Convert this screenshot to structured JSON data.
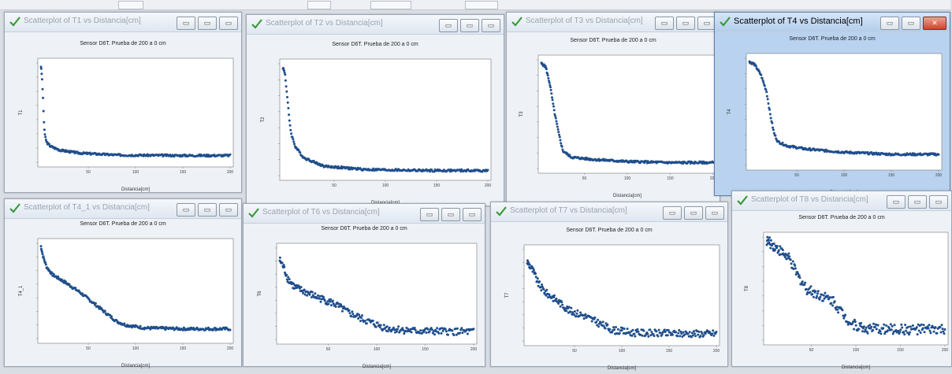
{
  "app": {
    "icon": "scatterplot-icon",
    "window_buttons": {
      "minimize": "▭",
      "maximize": "▭",
      "restore": "▭",
      "close": "✕"
    }
  },
  "colors": {
    "points": "#1f4e8c",
    "plot_bg": "#ffffff",
    "window_bg": "#eef1f6",
    "active_title": "#b9d2ef"
  },
  "windows": [
    {
      "title": "Scatterplot of T1 vs Distancia[cm]",
      "active": false
    },
    {
      "title": "Scatterplot of T2 vs Distancia[cm]",
      "active": false
    },
    {
      "title": "Scatterplot of T3 vs Distancia[cm]",
      "active": false
    },
    {
      "title": "Scatterplot of T4 vs Distancia[cm]",
      "active": true
    },
    {
      "title": "Scatterplot of T4_1 vs Distancia[cm]",
      "active": false
    },
    {
      "title": "Scatterplot of T6 vs Distancia[cm]",
      "active": false
    },
    {
      "title": "Scatterplot of T7 vs Distancia[cm]",
      "active": false
    },
    {
      "title": "Scatterplot of T8 vs Distancia[cm]",
      "active": false
    }
  ],
  "chart_data": [
    {
      "type": "scatter",
      "title": "Sensor D6T. Prueba de 200 a 0 cm",
      "xlabel": "Distancia[cm]",
      "ylabel": "T1",
      "xlim": [
        0,
        200
      ],
      "xticks": [
        "50",
        "100",
        "150",
        "200"
      ],
      "yticks": [
        "",
        "",
        "",
        "",
        "",
        "",
        "",
        ""
      ],
      "profile": [
        [
          0,
          100
        ],
        [
          1,
          90
        ],
        [
          2,
          70
        ],
        [
          3,
          45
        ],
        [
          4,
          30
        ],
        [
          6,
          22
        ],
        [
          10,
          18
        ],
        [
          20,
          14
        ],
        [
          40,
          11
        ],
        [
          80,
          9
        ],
        [
          140,
          8.5
        ],
        [
          200,
          8.5
        ]
      ],
      "noise": 1
    },
    {
      "type": "scatter",
      "title": "Sensor D6T. Prueba de 200 a 0 cm",
      "xlabel": "Distancia[cm]",
      "ylabel": "T2",
      "xlim": [
        0,
        200
      ],
      "xticks": [
        "50",
        "100",
        "150",
        "200"
      ],
      "yticks": [
        "",
        "",
        "",
        "",
        "",
        "",
        "",
        ""
      ],
      "profile": [
        [
          0,
          100
        ],
        [
          2,
          95
        ],
        [
          4,
          75
        ],
        [
          6,
          55
        ],
        [
          8,
          40
        ],
        [
          12,
          28
        ],
        [
          20,
          18
        ],
        [
          40,
          10
        ],
        [
          80,
          7
        ],
        [
          140,
          6
        ],
        [
          200,
          6
        ]
      ],
      "noise": 1
    },
    {
      "type": "scatter",
      "title": "Sensor D6T. Prueba de 200 a 0 cm",
      "xlabel": "Distancia[cm]",
      "ylabel": "T3",
      "xlim": [
        0,
        200
      ],
      "xticks": [
        "50",
        "100",
        "150",
        "200"
      ],
      "yticks": [
        "",
        "",
        "",
        "",
        "",
        "",
        "",
        ""
      ],
      "profile": [
        [
          0,
          100
        ],
        [
          5,
          97
        ],
        [
          10,
          80
        ],
        [
          15,
          55
        ],
        [
          20,
          35
        ],
        [
          25,
          18
        ],
        [
          35,
          12
        ],
        [
          60,
          10
        ],
        [
          100,
          8
        ],
        [
          150,
          7
        ],
        [
          200,
          7
        ]
      ],
      "noise": 1
    },
    {
      "type": "scatter",
      "title": "Sensor D6T. Prueba de 200 a 0 cm",
      "xlabel": "Distancia[cm]",
      "ylabel": "T4",
      "xlim": [
        0,
        200
      ],
      "xticks": [
        "50",
        "100",
        "150",
        "200"
      ],
      "yticks": [
        "",
        "",
        "",
        "",
        "",
        "",
        "",
        ""
      ],
      "profile": [
        [
          0,
          100
        ],
        [
          5,
          98
        ],
        [
          12,
          88
        ],
        [
          18,
          72
        ],
        [
          22,
          50
        ],
        [
          26,
          32
        ],
        [
          30,
          24
        ],
        [
          40,
          20
        ],
        [
          60,
          17
        ],
        [
          100,
          14
        ],
        [
          150,
          12
        ],
        [
          200,
          12
        ]
      ],
      "noise": 1
    },
    {
      "type": "scatter",
      "title": "Sensor D6T. Prueba de 200 a 0 cm",
      "xlabel": "Distancia[cm]",
      "ylabel": "T4_1",
      "xlim": [
        0,
        200
      ],
      "xticks": [
        "50",
        "100",
        "150",
        "200"
      ],
      "yticks": [
        "",
        "",
        "",
        "",
        "",
        "",
        "",
        ""
      ],
      "profile": [
        [
          0,
          100
        ],
        [
          2,
          90
        ],
        [
          6,
          78
        ],
        [
          12,
          70
        ],
        [
          25,
          62
        ],
        [
          40,
          52
        ],
        [
          55,
          40
        ],
        [
          70,
          28
        ],
        [
          80,
          20
        ],
        [
          90,
          16
        ],
        [
          110,
          13
        ],
        [
          150,
          12
        ],
        [
          200,
          12
        ]
      ],
      "noise": 1.5
    },
    {
      "type": "scatter",
      "title": "Sensor D6T. Prueba de 200 a 0 cm",
      "xlabel": "Distancia[cm]",
      "ylabel": "T6",
      "xlim": [
        0,
        200
      ],
      "xticks": [
        "50",
        "100",
        "150",
        "200"
      ],
      "yticks": [
        "",
        "",
        "",
        "",
        "",
        "",
        "",
        ""
      ],
      "profile": [
        [
          0,
          90
        ],
        [
          4,
          82
        ],
        [
          8,
          70
        ],
        [
          15,
          60
        ],
        [
          25,
          55
        ],
        [
          40,
          48
        ],
        [
          55,
          42
        ],
        [
          70,
          32
        ],
        [
          90,
          22
        ],
        [
          110,
          14
        ],
        [
          140,
          11
        ],
        [
          200,
          10
        ]
      ],
      "noise": 4
    },
    {
      "type": "scatter",
      "title": "Sensor D6T. Prueba de 200 a 0 cm",
      "xlabel": "Distancia[cm]",
      "ylabel": "T7",
      "xlim": [
        0,
        200
      ],
      "xticks": [
        "50",
        "100",
        "150",
        "200"
      ],
      "yticks": [
        "",
        "",
        "",
        "",
        "",
        "",
        "",
        ""
      ],
      "profile": [
        [
          0,
          90
        ],
        [
          6,
          80
        ],
        [
          12,
          65
        ],
        [
          20,
          55
        ],
        [
          30,
          48
        ],
        [
          45,
          35
        ],
        [
          60,
          30
        ],
        [
          75,
          22
        ],
        [
          90,
          14
        ],
        [
          110,
          11
        ],
        [
          150,
          10
        ],
        [
          200,
          10
        ]
      ],
      "noise": 4
    },
    {
      "type": "scatter",
      "title": "Sensor D6T. Prueba de 200 a 0 cm",
      "xlabel": "Distancia[cm]",
      "ylabel": "T8",
      "xlim": [
        0,
        200
      ],
      "xticks": [
        "50",
        "100",
        "150",
        "200"
      ],
      "yticks": [
        "",
        "",
        "",
        "",
        "",
        "",
        "",
        ""
      ],
      "profile": [
        [
          0,
          100
        ],
        [
          6,
          96
        ],
        [
          15,
          90
        ],
        [
          25,
          82
        ],
        [
          35,
          65
        ],
        [
          45,
          52
        ],
        [
          60,
          46
        ],
        [
          75,
          40
        ],
        [
          85,
          28
        ],
        [
          95,
          18
        ],
        [
          110,
          13
        ],
        [
          150,
          12
        ],
        [
          200,
          12
        ]
      ],
      "noise": 5
    }
  ]
}
